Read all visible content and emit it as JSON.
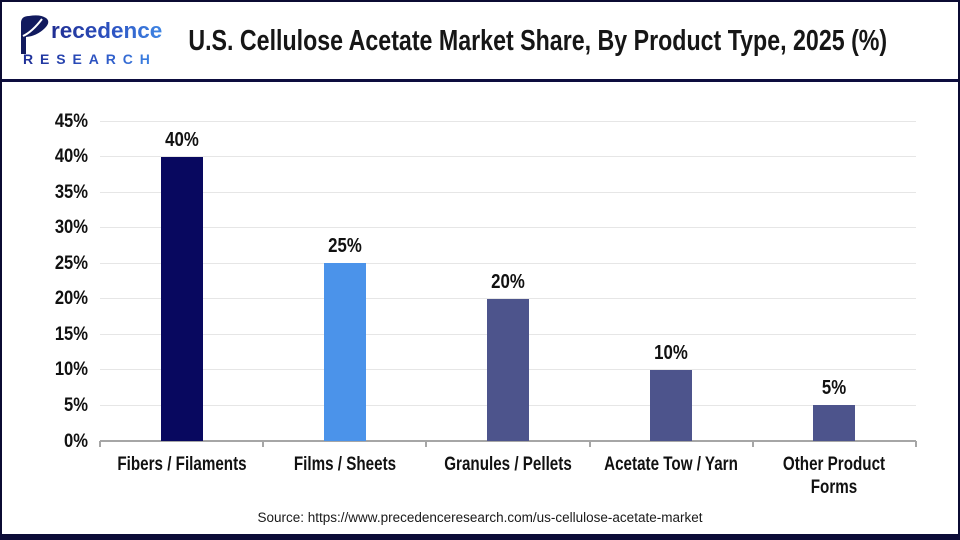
{
  "logo": {
    "brand_full": "Precedence",
    "brand_rest": "recedence",
    "subtitle": "RESEARCH"
  },
  "header": {
    "title": "U.S. Cellulose Acetate Market Share, By Product Type, 2025 (%)"
  },
  "chart_data": {
    "type": "bar",
    "title": "U.S. Cellulose Acetate Market Share, By Product Type, 2025 (%)",
    "categories": [
      "Fibers / Filaments",
      "Films / Sheets",
      "Granules / Pellets",
      "Acetate Tow / Yarn",
      "Other Product Forms"
    ],
    "values": [
      40,
      25,
      20,
      10,
      5
    ],
    "data_labels": [
      "40%",
      "25%",
      "20%",
      "10%",
      "5%"
    ],
    "unit": "%",
    "ylim": [
      0,
      45
    ],
    "ytick_step": 5,
    "ytick_labels": [
      "0%",
      "5%",
      "10%",
      "15%",
      "20%",
      "25%",
      "30%",
      "35%",
      "40%",
      "45%"
    ],
    "bar_colors": [
      "#08085F",
      "#4B93EA",
      "#4D548C",
      "#4D548C",
      "#4D548C"
    ],
    "grid": true,
    "legend": false,
    "xlabel": "",
    "ylabel": ""
  },
  "footer": {
    "source": "Source: https://www.precedenceresearch.com/us-cellulose-acetate-market"
  },
  "colors": {
    "divider": "#0D0D3F",
    "grid": "#E6E6E6",
    "axis": "#A6A6A6",
    "bar_navy": "#08085F",
    "bar_blue": "#4B93EA",
    "bar_slate": "#4D548C"
  }
}
